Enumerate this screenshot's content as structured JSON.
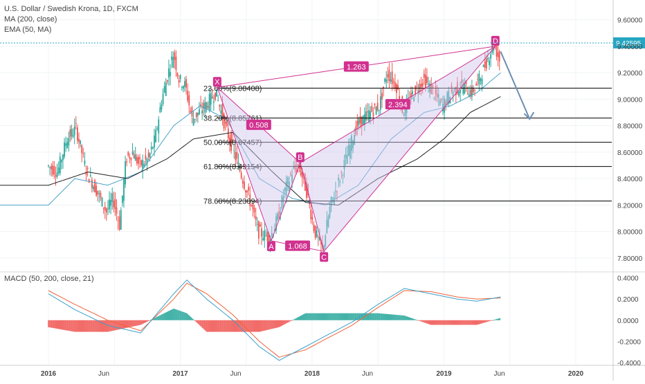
{
  "header": {
    "title": "U.S. Dollar / Swedish Krona, 1D, FXCM",
    "indicators": [
      "MA (200, close)",
      "EMA (50, MA)"
    ]
  },
  "price_pane": {
    "current_price_label": "9.42595",
    "y_ticks": [
      "9.60000",
      "9.40000",
      "9.20000",
      "9.00000",
      "8.80000",
      "8.60000",
      "8.40000",
      "8.20000",
      "8.00000",
      "7.80000"
    ],
    "fib_levels": [
      {
        "label": "23.60%(9.08408)",
        "value": 9.08408
      },
      {
        "label": "38.20%(8.85761)",
        "value": 8.85761
      },
      {
        "label": "50.00%(8.67457)",
        "value": 8.67457
      },
      {
        "label": "61.80%(8.49154)",
        "value": 8.49154
      },
      {
        "label": "78.60%(8.23094)",
        "value": 8.23094
      }
    ],
    "pattern_points": [
      {
        "label": "X",
        "t": 1.28,
        "value": 9.09
      },
      {
        "label": "A",
        "t": 1.69,
        "value": 7.93
      },
      {
        "label": "B",
        "t": 1.91,
        "value": 8.52
      },
      {
        "label": "C",
        "t": 2.09,
        "value": 7.85
      },
      {
        "label": "D",
        "t": 3.39,
        "value": 9.4
      }
    ],
    "ratio_labels": [
      "1.263",
      "2.394",
      "0.508",
      "1.068"
    ]
  },
  "macd_pane": {
    "label": "MACD (50, 200, close, 21)",
    "y_ticks": [
      "0.4000",
      "0.2000",
      "0.0000",
      "-0.2000",
      "-0.4000"
    ]
  },
  "x_axis": {
    "labels": [
      "2016",
      "Jun",
      "2017",
      "Jun",
      "2018",
      "Jun",
      "2019",
      "Jun",
      "2020"
    ]
  },
  "colors": {
    "ma200": "#222222",
    "ema50": "#4aa3c8",
    "pattern": "#d1318f",
    "pattern_fill": "#cfc6ee",
    "arrow": "#6c8fb0",
    "macd_line": "#3aa0c8",
    "signal_line": "#f0623a",
    "hist_pos": "#26a69a",
    "hist_neg": "#ef5350",
    "price_line": "#26a6c2"
  },
  "chart_data": {
    "type": "line",
    "title": "U.S. Dollar / Swedish Krona, 1D, FXCM",
    "note_t": "t is time in years after Jan 2016 (0 = Jan 2016, 1 = Jan 2017, ...)",
    "price_anchors": [
      [
        0,
        8.5
      ],
      [
        0.08,
        8.45
      ],
      [
        0.15,
        8.7
      ],
      [
        0.22,
        8.78
      ],
      [
        0.3,
        8.45
      ],
      [
        0.38,
        8.3
      ],
      [
        0.45,
        8.15
      ],
      [
        0.5,
        8.25
      ],
      [
        0.55,
        8.05
      ],
      [
        0.6,
        8.55
      ],
      [
        0.65,
        8.6
      ],
      [
        0.7,
        8.5
      ],
      [
        0.77,
        8.55
      ],
      [
        0.82,
        8.7
      ],
      [
        0.87,
        9.0
      ],
      [
        0.92,
        9.2
      ],
      [
        0.96,
        9.35
      ],
      [
        1.0,
        9.15
      ],
      [
        1.05,
        9.1
      ],
      [
        1.1,
        8.85
      ],
      [
        1.15,
        8.9
      ],
      [
        1.2,
        8.95
      ],
      [
        1.28,
        9.05
      ],
      [
        1.35,
        8.8
      ],
      [
        1.45,
        8.5
      ],
      [
        1.55,
        8.2
      ],
      [
        1.6,
        8.0
      ],
      [
        1.69,
        7.95
      ],
      [
        1.75,
        8.1
      ],
      [
        1.8,
        8.3
      ],
      [
        1.86,
        8.45
      ],
      [
        1.91,
        8.5
      ],
      [
        1.97,
        8.3
      ],
      [
        2.03,
        8.0
      ],
      [
        2.09,
        7.86
      ],
      [
        2.15,
        8.2
      ],
      [
        2.22,
        8.4
      ],
      [
        2.3,
        8.65
      ],
      [
        2.35,
        8.8
      ],
      [
        2.45,
        8.9
      ],
      [
        2.52,
        8.95
      ],
      [
        2.58,
        9.2
      ],
      [
        2.65,
        9.1
      ],
      [
        2.7,
        8.9
      ],
      [
        2.78,
        9.05
      ],
      [
        2.86,
        9.15
      ],
      [
        2.93,
        9.05
      ],
      [
        3.0,
        8.95
      ],
      [
        3.06,
        9.05
      ],
      [
        3.15,
        9.1
      ],
      [
        3.22,
        9.05
      ],
      [
        3.28,
        9.15
      ],
      [
        3.34,
        9.3
      ],
      [
        3.39,
        9.42
      ],
      [
        3.43,
        9.3
      ]
    ],
    "ma200_anchors": [
      [
        0,
        8.35
      ],
      [
        0.3,
        8.45
      ],
      [
        0.6,
        8.4
      ],
      [
        0.9,
        8.55
      ],
      [
        1.1,
        8.7
      ],
      [
        1.4,
        8.75
      ],
      [
        1.7,
        8.45
      ],
      [
        1.95,
        8.22
      ],
      [
        2.2,
        8.2
      ],
      [
        2.5,
        8.4
      ],
      [
        2.8,
        8.55
      ],
      [
        3.0,
        8.7
      ],
      [
        3.2,
        8.9
      ],
      [
        3.43,
        9.02
      ]
    ],
    "ema50_anchors": [
      [
        0,
        8.2
      ],
      [
        0.2,
        8.4
      ],
      [
        0.45,
        8.35
      ],
      [
        0.7,
        8.45
      ],
      [
        0.95,
        8.8
      ],
      [
        1.15,
        8.95
      ],
      [
        1.35,
        8.85
      ],
      [
        1.6,
        8.4
      ],
      [
        1.85,
        8.25
      ],
      [
        2.1,
        8.2
      ],
      [
        2.35,
        8.35
      ],
      [
        2.6,
        8.7
      ],
      [
        2.85,
        8.9
      ],
      [
        3.05,
        8.95
      ],
      [
        3.25,
        9.05
      ],
      [
        3.43,
        9.2
      ]
    ],
    "macd_anchors": [
      [
        0,
        0.25
      ],
      [
        0.2,
        0.1
      ],
      [
        0.45,
        -0.05
      ],
      [
        0.7,
        -0.12
      ],
      [
        0.95,
        0.25
      ],
      [
        1.05,
        0.38
      ],
      [
        1.2,
        0.2
      ],
      [
        1.4,
        0.0
      ],
      [
        1.6,
        -0.25
      ],
      [
        1.75,
        -0.38
      ],
      [
        1.95,
        -0.25
      ],
      [
        2.1,
        -0.15
      ],
      [
        2.3,
        -0.02
      ],
      [
        2.5,
        0.15
      ],
      [
        2.7,
        0.3
      ],
      [
        2.9,
        0.25
      ],
      [
        3.1,
        0.2
      ],
      [
        3.25,
        0.18
      ],
      [
        3.43,
        0.22
      ]
    ],
    "signal_anchors": [
      [
        0,
        0.28
      ],
      [
        0.2,
        0.15
      ],
      [
        0.45,
        0.0
      ],
      [
        0.7,
        -0.1
      ],
      [
        0.95,
        0.2
      ],
      [
        1.05,
        0.35
      ],
      [
        1.2,
        0.25
      ],
      [
        1.4,
        0.05
      ],
      [
        1.6,
        -0.2
      ],
      [
        1.75,
        -0.35
      ],
      [
        1.95,
        -0.28
      ],
      [
        2.1,
        -0.18
      ],
      [
        2.3,
        -0.05
      ],
      [
        2.5,
        0.12
      ],
      [
        2.7,
        0.28
      ],
      [
        2.9,
        0.27
      ],
      [
        3.1,
        0.22
      ],
      [
        3.25,
        0.2
      ],
      [
        3.43,
        0.21
      ]
    ],
    "ylim": [
      7.7,
      9.75
    ],
    "macd_ylim": [
      -0.42,
      0.45
    ]
  }
}
